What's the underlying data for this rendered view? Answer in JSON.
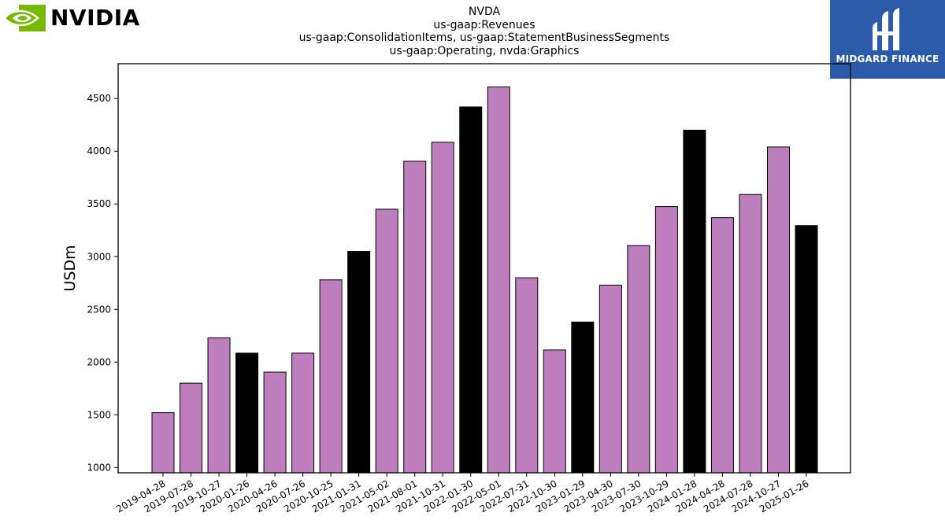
{
  "logos": {
    "left": {
      "wordmark": "NVIDIA",
      "icon": "nvidia-eye-icon",
      "color": "#76b900"
    },
    "right": {
      "name": "MIDGARD FINANCE",
      "icon": "midgard-mark-icon",
      "color": "#2a5aa8"
    }
  },
  "chart_data": {
    "type": "bar",
    "title_lines": [
      "NVDA",
      "us-gaap:Revenues",
      "us-gaap:ConsolidationItems, us-gaap:StatementBusinessSegments",
      "us-gaap:Operating, nvda:Graphics"
    ],
    "xlabel": "",
    "ylabel": "USDm",
    "ylim": [
      950,
      4830
    ],
    "yticks": [
      1000,
      1500,
      2000,
      2500,
      3000,
      3500,
      4000,
      4500
    ],
    "grid": false,
    "colors": {
      "quarter": "#bf7fbf",
      "fiscal_year_end": "#000000"
    },
    "categories": [
      "2019-04-28",
      "2019-07-28",
      "2019-10-27",
      "2020-01-26",
      "2020-04-26",
      "2020-07-26",
      "2020-10-25",
      "2021-01-31",
      "2021-05-02",
      "2021-08-01",
      "2021-10-31",
      "2022-01-30",
      "2022-05-01",
      "2022-07-31",
      "2022-10-30",
      "2023-01-29",
      "2023-04-30",
      "2023-07-30",
      "2023-10-29",
      "2024-01-28",
      "2024-04-28",
      "2024-07-28",
      "2024-10-27",
      "2025-01-26"
    ],
    "values": [
      1520,
      1800,
      2230,
      2085,
      1905,
      2085,
      2780,
      3050,
      3450,
      3905,
      4085,
      4420,
      4610,
      2800,
      2115,
      2380,
      2730,
      3105,
      3475,
      4200,
      3370,
      3590,
      4040,
      3295
    ],
    "highlight": [
      false,
      false,
      false,
      true,
      false,
      false,
      false,
      true,
      false,
      false,
      false,
      true,
      false,
      false,
      false,
      true,
      false,
      false,
      false,
      true,
      false,
      false,
      false,
      true
    ]
  }
}
